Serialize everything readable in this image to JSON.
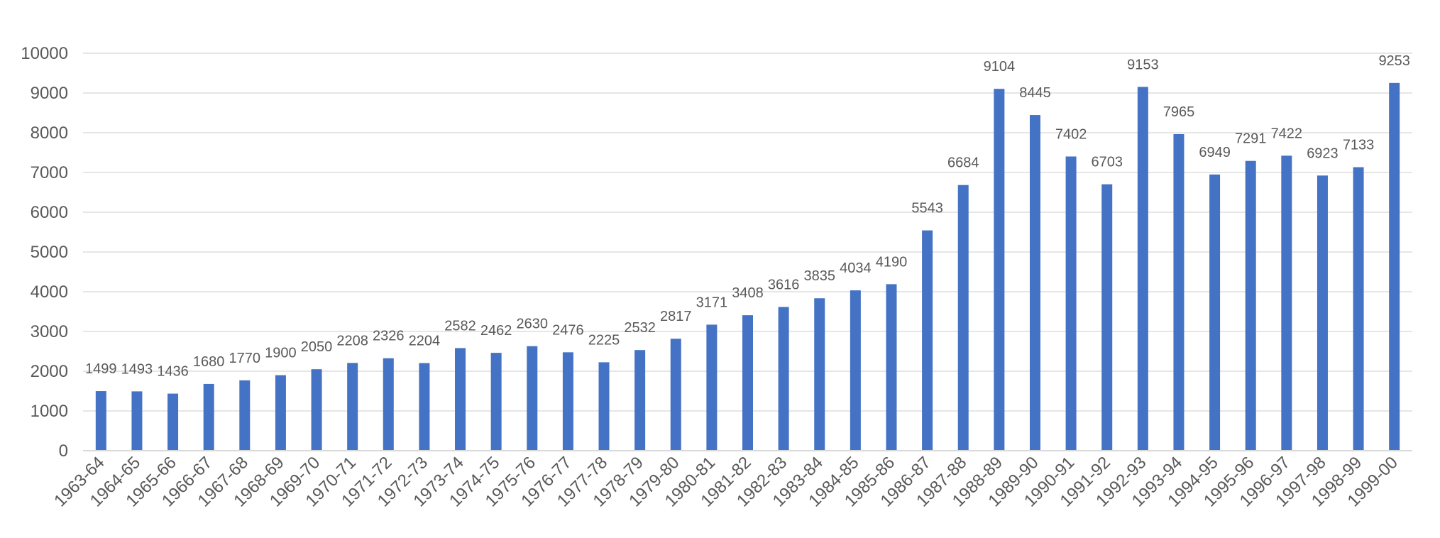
{
  "chart_data": {
    "type": "bar",
    "categories": [
      "1963-64",
      "1964-65",
      "1965-66",
      "1966-67",
      "1967-68",
      "1968-69",
      "1969-70",
      "1970-71",
      "1971-72",
      "1972-73",
      "1973-74",
      "1974-75",
      "1975-76",
      "1976-77",
      "1977-78",
      "1978-79",
      "1979-80",
      "1980-81",
      "1981-82",
      "1982-83",
      "1983-84",
      "1984-85",
      "1985-86",
      "1986-87",
      "1987-88",
      "1988-89",
      "1989-90",
      "1990-91",
      "1991-92",
      "1992-93",
      "1993-94",
      "1994-95",
      "1995-96",
      "1996-97",
      "1997-98",
      "1998-99",
      "1999-00"
    ],
    "values": [
      1499,
      1493,
      1436,
      1680,
      1770,
      1900,
      2050,
      2208,
      2326,
      2204,
      2582,
      2462,
      2630,
      2476,
      2225,
      2532,
      2817,
      3171,
      3408,
      3616,
      3835,
      4034,
      4190,
      5543,
      6684,
      9104,
      8445,
      7402,
      6703,
      9153,
      7965,
      6949,
      7291,
      7422,
      6923,
      7133,
      9253
    ],
    "ylim": [
      0,
      10000
    ],
    "yticks": [
      0,
      1000,
      2000,
      3000,
      4000,
      5000,
      6000,
      7000,
      8000,
      9000,
      10000
    ],
    "grid": true,
    "data_labels": true,
    "bar_color": "#4472C4",
    "grid_color": "#e6e6e6",
    "text_color": "#595959"
  }
}
